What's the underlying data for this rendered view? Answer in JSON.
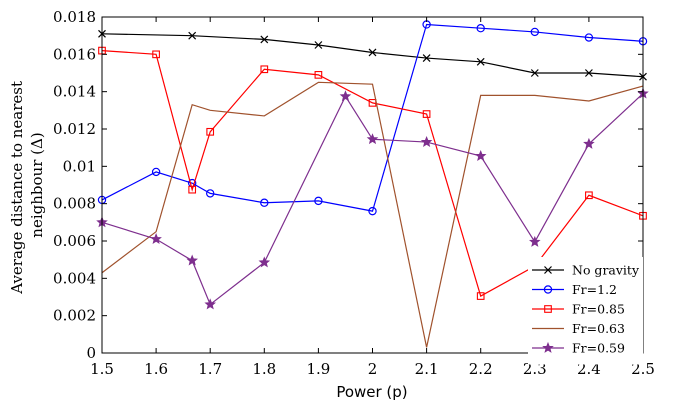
{
  "chart_data": {
    "type": "line",
    "xlabel": "Power (p)",
    "ylabel": "Average distance to nearest neighbour (Δ)",
    "ylabel_lines": [
      "Average distance to nearest",
      "neighbour (Δ)"
    ],
    "xlim": [
      1.5,
      2.5
    ],
    "ylim": [
      0,
      0.018
    ],
    "xticks": [
      "1.5",
      "1.6",
      "1.7",
      "1.8",
      "1.9",
      "2",
      "2.1",
      "2.2",
      "2.3",
      "2.4",
      "2.5"
    ],
    "yticks": [
      "0",
      "0.002",
      "0.004",
      "0.006",
      "0.008",
      "0.01",
      "0.012",
      "0.014",
      "0.016",
      "0.018"
    ],
    "grid": false,
    "legend_position": "bottom-right",
    "series": [
      {
        "name": "No gravity",
        "color": "#000000",
        "marker": "x",
        "x": [
          1.5,
          1.6667,
          1.8,
          1.9,
          2.0,
          2.1,
          2.2,
          2.3,
          2.4,
          2.5
        ],
        "y": [
          0.0171,
          0.017,
          0.0168,
          0.0165,
          0.0161,
          0.0158,
          0.0156,
          0.015,
          0.015,
          0.0148
        ]
      },
      {
        "name": "Fr=1.2",
        "color": "#0000ff",
        "marker": "circle",
        "x": [
          1.5,
          1.6,
          1.6667,
          1.7,
          1.8,
          1.9,
          2.0,
          2.1,
          2.2,
          2.3,
          2.4,
          2.5
        ],
        "y": [
          0.0082,
          0.0097,
          0.0091,
          0.00855,
          0.00805,
          0.00815,
          0.0076,
          0.0176,
          0.0174,
          0.0172,
          0.0169,
          0.0167
        ]
      },
      {
        "name": "Fr=0.85",
        "color": "#ff0000",
        "marker": "square",
        "x": [
          1.5,
          1.6,
          1.6667,
          1.7,
          1.8,
          1.9,
          2.0,
          2.1,
          2.2,
          2.3,
          2.4,
          2.5
        ],
        "y": [
          0.0162,
          0.016,
          0.00875,
          0.01185,
          0.0152,
          0.0149,
          0.0134,
          0.0128,
          0.00305,
          0.00465,
          0.00845,
          0.00735
        ]
      },
      {
        "name": "Fr=0.63",
        "color": "#a0522d",
        "marker": "none",
        "x": [
          1.5,
          1.6,
          1.6667,
          1.7,
          1.8,
          1.9,
          2.0,
          2.1,
          2.2,
          2.3,
          2.4,
          2.5
        ],
        "y": [
          0.0043,
          0.0065,
          0.0133,
          0.013,
          0.0127,
          0.0145,
          0.0144,
          0.0003,
          0.0138,
          0.0138,
          0.0135,
          0.0143
        ]
      },
      {
        "name": "Fr=0.59",
        "color": "#7e2f8e",
        "marker": "star",
        "x": [
          1.5,
          1.6,
          1.6667,
          1.7,
          1.8,
          1.95,
          2.0,
          2.1,
          2.2,
          2.3,
          2.4,
          2.5
        ],
        "y": [
          0.007,
          0.0061,
          0.00495,
          0.0026,
          0.00485,
          0.01375,
          0.01145,
          0.0113,
          0.01055,
          0.00595,
          0.0112,
          0.0139
        ]
      }
    ]
  }
}
